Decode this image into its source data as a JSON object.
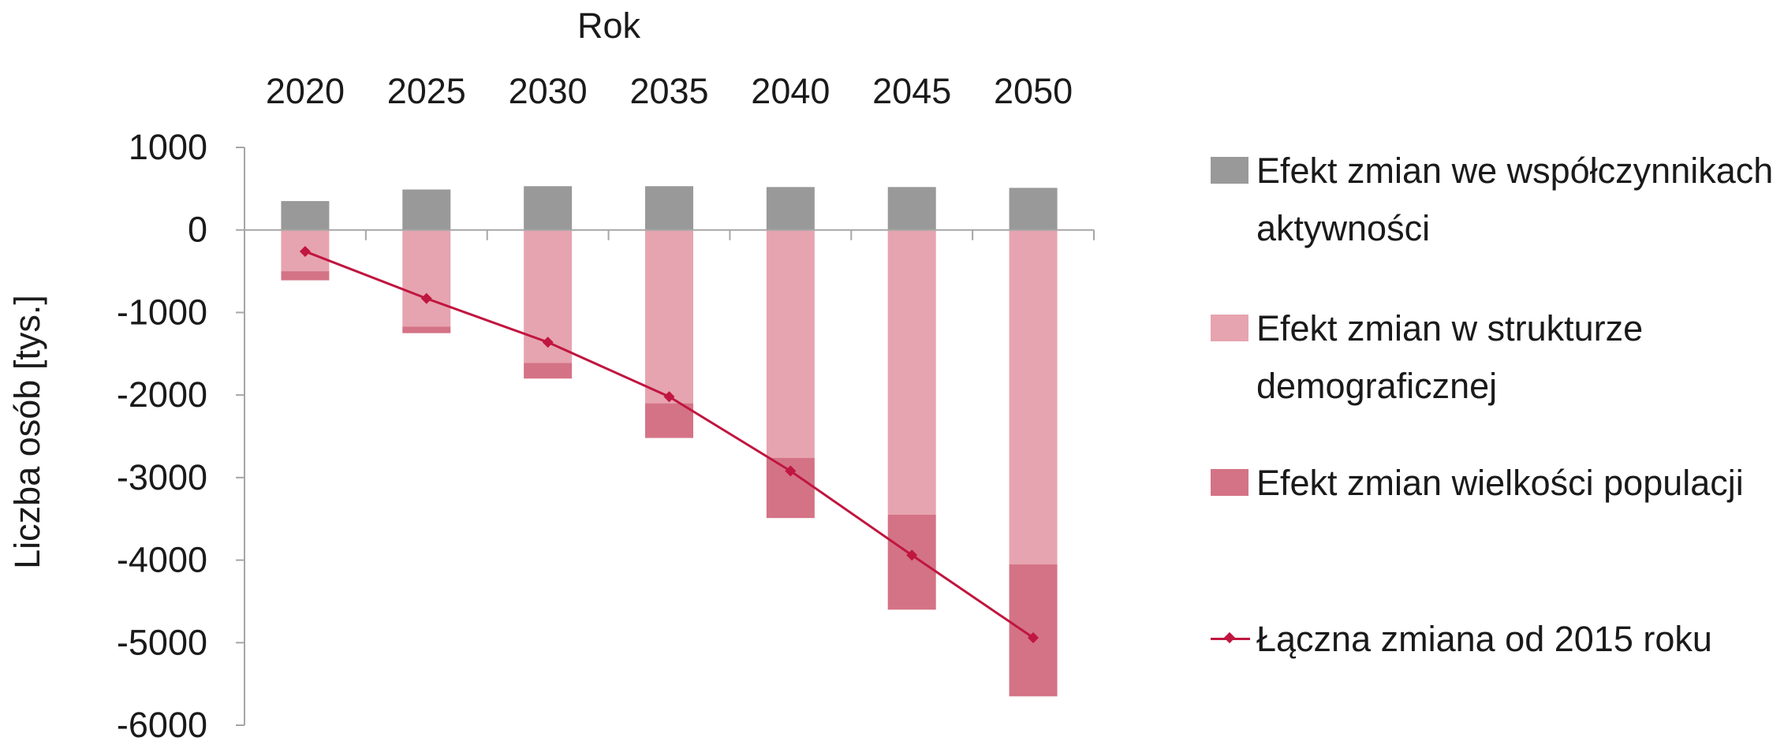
{
  "chart_data": {
    "type": "bar",
    "stacked": true,
    "x_axis_position": "top",
    "title": "",
    "xlabel": "Rok",
    "ylabel": "Liczba osób [tys.]",
    "ylim": [
      -6000,
      1000
    ],
    "yticks": [
      1000,
      0,
      -1000,
      -2000,
      -3000,
      -4000,
      -5000,
      -6000
    ],
    "categories": [
      "2020",
      "2025",
      "2030",
      "2035",
      "2040",
      "2045",
      "2050"
    ],
    "series": [
      {
        "name": "Efekt zmian we współczynnikach aktywności",
        "type": "bar",
        "color": "#999999",
        "values": [
          350,
          490,
          530,
          530,
          520,
          520,
          510
        ]
      },
      {
        "name": "Efekt zmian w strukturze demograficznej",
        "type": "bar",
        "color": "#e6a4b0",
        "values": [
          -500,
          -1170,
          -1610,
          -2100,
          -2760,
          -3450,
          -4050
        ]
      },
      {
        "name": "Efekt zmian wielkości populacji",
        "type": "bar",
        "color": "#d47385",
        "values": [
          -110,
          -80,
          -190,
          -420,
          -730,
          -1150,
          -1600
        ]
      },
      {
        "name": "Łączna zmiana od 2015 roku",
        "type": "line",
        "color": "#c0163f",
        "marker": "diamond",
        "values": [
          -260,
          -830,
          -1360,
          -2020,
          -2920,
          -3940,
          -4940
        ]
      }
    ],
    "legend_position": "right",
    "grid": false
  }
}
